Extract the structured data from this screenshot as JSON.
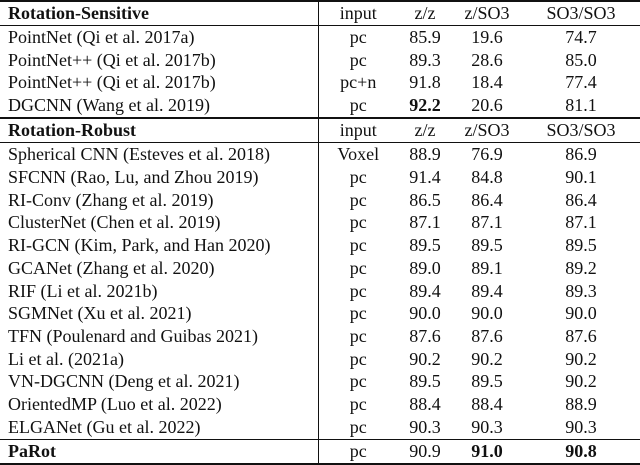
{
  "table": {
    "columns": [
      "input",
      "z/z",
      "z/SO3",
      "SO3/SO3"
    ],
    "sections": [
      {
        "header": "Rotation-Sensitive",
        "rows": [
          {
            "method": "PointNet (Qi et al. 2017a)",
            "input": "pc",
            "values": [
              "85.9",
              "19.6",
              "74.7"
            ],
            "bold": [
              false,
              false,
              false
            ]
          },
          {
            "method": "PointNet++ (Qi et al. 2017b)",
            "input": "pc",
            "values": [
              "89.3",
              "28.6",
              "85.0"
            ],
            "bold": [
              false,
              false,
              false
            ]
          },
          {
            "method": "PointNet++ (Qi et al. 2017b)",
            "input": "pc+n",
            "values": [
              "91.8",
              "18.4",
              "77.4"
            ],
            "bold": [
              false,
              false,
              false
            ]
          },
          {
            "method": "DGCNN (Wang et al. 2019)",
            "input": "pc",
            "values": [
              "92.2",
              "20.6",
              "81.1"
            ],
            "bold": [
              true,
              false,
              false
            ]
          }
        ]
      },
      {
        "header": "Rotation-Robust",
        "rows": [
          {
            "method": "Spherical CNN (Esteves et al. 2018)",
            "input": "Voxel",
            "values": [
              "88.9",
              "76.9",
              "86.9"
            ],
            "bold": [
              false,
              false,
              false
            ]
          },
          {
            "method": "SFCNN (Rao, Lu, and Zhou 2019)",
            "input": "pc",
            "values": [
              "91.4",
              "84.8",
              "90.1"
            ],
            "bold": [
              false,
              false,
              false
            ]
          },
          {
            "method": "RI-Conv (Zhang et al. 2019)",
            "input": "pc",
            "values": [
              "86.5",
              "86.4",
              "86.4"
            ],
            "bold": [
              false,
              false,
              false
            ]
          },
          {
            "method": "ClusterNet (Chen et al. 2019)",
            "input": "pc",
            "values": [
              "87.1",
              "87.1",
              "87.1"
            ],
            "bold": [
              false,
              false,
              false
            ]
          },
          {
            "method": "RI-GCN (Kim, Park, and Han 2020)",
            "input": "pc",
            "values": [
              "89.5",
              "89.5",
              "89.5"
            ],
            "bold": [
              false,
              false,
              false
            ]
          },
          {
            "method": "GCANet (Zhang et al. 2020)",
            "input": "pc",
            "values": [
              "89.0",
              "89.1",
              "89.2"
            ],
            "bold": [
              false,
              false,
              false
            ]
          },
          {
            "method": "RIF (Li et al. 2021b)",
            "input": "pc",
            "values": [
              "89.4",
              "89.4",
              "89.3"
            ],
            "bold": [
              false,
              false,
              false
            ]
          },
          {
            "method": "SGMNet (Xu et al. 2021)",
            "input": "pc",
            "values": [
              "90.0",
              "90.0",
              "90.0"
            ],
            "bold": [
              false,
              false,
              false
            ]
          },
          {
            "method": "TFN (Poulenard and Guibas 2021)",
            "input": "pc",
            "values": [
              "87.6",
              "87.6",
              "87.6"
            ],
            "bold": [
              false,
              false,
              false
            ]
          },
          {
            "method": "Li et al. (2021a)",
            "input": "pc",
            "values": [
              "90.2",
              "90.2",
              "90.2"
            ],
            "bold": [
              false,
              false,
              false
            ]
          },
          {
            "method": "VN-DGCNN (Deng et al. 2021)",
            "input": "pc",
            "values": [
              "89.5",
              "89.5",
              "90.2"
            ],
            "bold": [
              false,
              false,
              false
            ]
          },
          {
            "method": "OrientedMP (Luo et al. 2022)",
            "input": "pc",
            "values": [
              "88.4",
              "88.4",
              "88.9"
            ],
            "bold": [
              false,
              false,
              false
            ]
          },
          {
            "method": "ELGANet (Gu et al. 2022)",
            "input": "pc",
            "values": [
              "90.3",
              "90.3",
              "90.3"
            ],
            "bold": [
              false,
              false,
              false
            ]
          }
        ]
      }
    ],
    "footer": {
      "method": "PaRot",
      "method_bold": true,
      "input": "pc",
      "values": [
        "90.9",
        "91.0",
        "90.8"
      ],
      "bold": [
        false,
        true,
        true
      ]
    }
  }
}
